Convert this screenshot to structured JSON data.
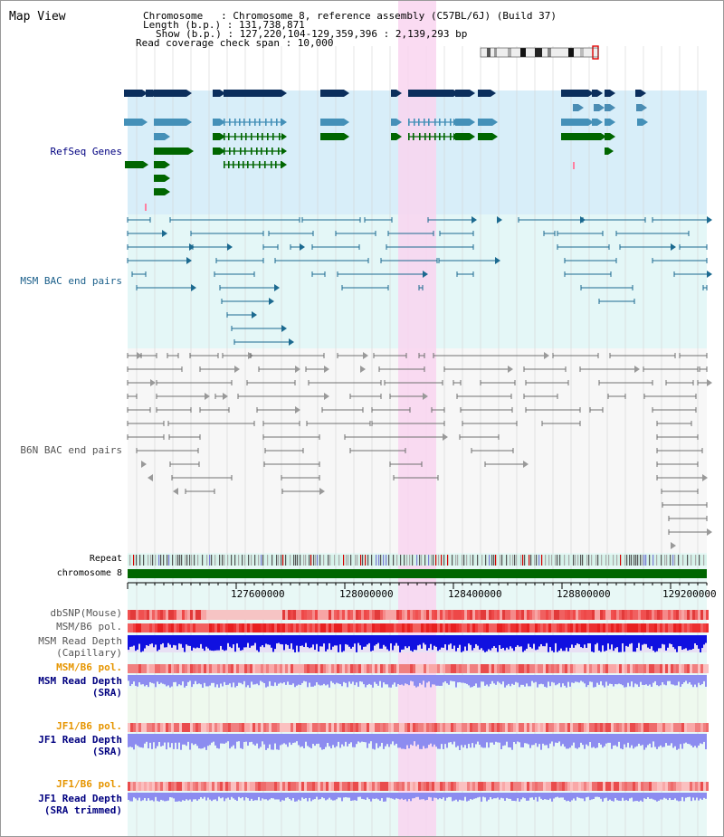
{
  "header": {
    "title": "Map View",
    "chromosome_row": "Chromosome   : Chromosome 8, reference assembly (C57BL/6J) (Build 37)",
    "length_row": "Length (b.p.) : 131,738,871",
    "show_row": "Show (b.p.) : 127,220,104-129,359,396 : 2,139,293 bp",
    "coverage_row": "Read coverage check span : 10,000"
  },
  "tracks": {
    "refseq": "RefSeq Genes",
    "msm_bac": "MSM BAC end pairs",
    "b6n_bac": "B6N BAC end pairs",
    "repeat": "Repeat",
    "chromosome": "chromosome 8",
    "dbsnp": "dbSNP(Mouse)",
    "msm_b6_pol": "MSM/B6 pol.",
    "msm_depth_cap_1": "MSM Read Depth",
    "msm_depth_cap_2": "(Capillary)",
    "msm_b6_pol_2": "MSM/B6 pol.",
    "msm_depth_sra_1": "MSM Read Depth",
    "msm_depth_sra_2": "(SRA)",
    "jf1_pol": "JF1/B6 pol.",
    "jf1_depth_sra_1": "JF1 Read Depth",
    "jf1_depth_sra_2": "(SRA)",
    "jf1_pol_2": "JF1/B6 pol.",
    "jf1_depth_trim_1": "JF1 Read Depth",
    "jf1_depth_trim_2": "(SRA trimmed)"
  },
  "ruler": {
    "ticks": [
      "127600000",
      "128000000",
      "128400000",
      "128800000",
      "129200000"
    ]
  },
  "colors": {
    "refseq_bg": "#d8eef9",
    "msm_bg": "#e4f7f7",
    "b6n_bg": "#f7f7f7",
    "highlight": "#f9d5f0",
    "chromosome_bar": "#006600",
    "gene_dark": "#0b2e5c",
    "gene_mid": "#4490b8",
    "gene_green": "#006600",
    "msm_line": "#1c6a90",
    "b6n_line": "#707070",
    "depth_blue": "#1010e0",
    "depth_light": "#8c8cf0",
    "label_navy": "#000080",
    "label_teal": "#1a5f8a",
    "label_grey": "#555555",
    "label_orange": "#e69500"
  }
}
